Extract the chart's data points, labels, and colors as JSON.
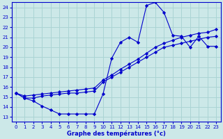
{
  "xlabel": "Graphe des températures (°c)",
  "bg_color": "#cce8e8",
  "grid_color": "#aad4d4",
  "line_color": "#0000cc",
  "xlim": [
    -0.5,
    23.5
  ],
  "ylim": [
    12.5,
    24.5
  ],
  "yticks": [
    13,
    14,
    15,
    16,
    17,
    18,
    19,
    20,
    21,
    22,
    23,
    24
  ],
  "xticks": [
    0,
    1,
    2,
    3,
    4,
    5,
    6,
    7,
    8,
    9,
    10,
    11,
    12,
    13,
    14,
    15,
    16,
    17,
    18,
    19,
    20,
    21,
    22,
    23
  ],
  "s1_x": [
    0,
    1,
    2,
    3,
    4,
    5,
    6,
    7,
    8,
    9,
    10,
    11,
    12,
    13,
    14,
    15,
    16,
    17,
    18,
    19,
    20,
    21,
    22,
    23
  ],
  "s1_y": [
    15.4,
    14.9,
    14.6,
    14.1,
    13.7,
    13.3,
    13.3,
    13.3,
    13.3,
    13.3,
    15.3,
    18.9,
    20.5,
    21.0,
    20.5,
    24.2,
    24.5,
    23.5,
    21.2,
    21.1,
    20.0,
    21.1,
    20.1,
    20.1
  ],
  "s2_x": [
    0,
    1,
    2,
    3,
    4,
    5,
    6,
    7,
    8,
    9,
    10,
    11,
    12,
    13,
    14,
    15,
    16,
    17,
    18,
    19,
    20,
    21,
    22,
    23
  ],
  "s2_y": [
    15.4,
    15.1,
    15.2,
    15.3,
    15.4,
    15.5,
    15.6,
    15.7,
    15.8,
    15.9,
    16.7,
    17.2,
    17.8,
    18.3,
    18.8,
    19.4,
    20.0,
    20.4,
    20.7,
    21.0,
    21.2,
    21.4,
    21.5,
    21.8
  ],
  "s3_x": [
    0,
    1,
    2,
    3,
    4,
    5,
    6,
    7,
    8,
    9,
    10,
    11,
    12,
    13,
    14,
    15,
    16,
    17,
    18,
    19,
    20,
    21,
    22,
    23
  ],
  "s3_y": [
    15.4,
    14.9,
    14.9,
    15.1,
    15.2,
    15.3,
    15.4,
    15.4,
    15.5,
    15.6,
    16.5,
    17.0,
    17.5,
    18.0,
    18.5,
    19.0,
    19.5,
    20.0,
    20.2,
    20.4,
    20.6,
    20.8,
    21.0,
    21.1
  ]
}
